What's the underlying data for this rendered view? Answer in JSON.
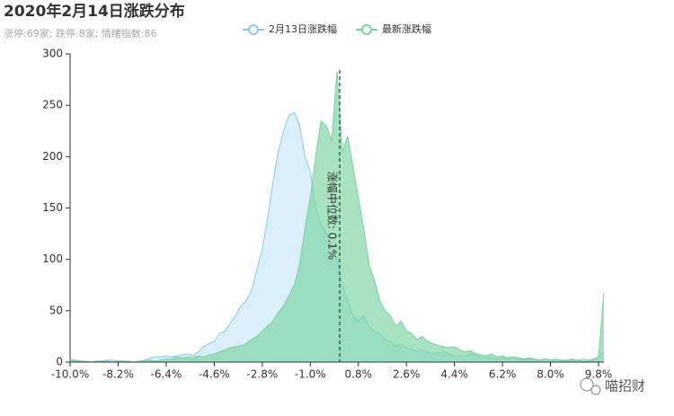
{
  "chart_data": {
    "type": "area",
    "title": "2020年2月14日涨跌分布",
    "subtitle": "涨停:69家; 跌停:8家; 情绪指数:86",
    "watermark": "喵招财",
    "x": [
      -10.0,
      -9.8,
      -9.6,
      -9.4,
      -9.2,
      -9.0,
      -8.8,
      -8.6,
      -8.4,
      -8.2,
      -8.0,
      -7.8,
      -7.6,
      -7.4,
      -7.2,
      -7.0,
      -6.8,
      -6.6,
      -6.4,
      -6.2,
      -6.0,
      -5.8,
      -5.6,
      -5.4,
      -5.2,
      -5.0,
      -4.8,
      -4.6,
      -4.4,
      -4.2,
      -4.0,
      -3.8,
      -3.6,
      -3.4,
      -3.2,
      -3.0,
      -2.8,
      -2.6,
      -2.4,
      -2.2,
      -2.0,
      -1.8,
      -1.6,
      -1.4,
      -1.2,
      -1.0,
      -0.8,
      -0.6,
      -0.4,
      -0.2,
      0.0,
      0.2,
      0.4,
      0.6,
      0.8,
      1.0,
      1.2,
      1.4,
      1.6,
      1.8,
      2.0,
      2.2,
      2.4,
      2.6,
      2.8,
      3.0,
      3.2,
      3.4,
      3.6,
      3.8,
      4.0,
      4.2,
      4.4,
      4.6,
      4.8,
      5.0,
      5.2,
      5.4,
      5.6,
      5.8,
      6.0,
      6.2,
      6.4,
      6.6,
      6.8,
      7.0,
      7.2,
      7.4,
      7.6,
      7.8,
      8.0,
      8.2,
      8.4,
      8.6,
      8.8,
      9.0,
      9.2,
      9.4,
      9.6,
      9.8,
      10.0
    ],
    "series": [
      {
        "name": "2月13日涨跌幅",
        "color": "#86cbec",
        "values": [
          3,
          2,
          1,
          1,
          0,
          1,
          1,
          2,
          2,
          1,
          1,
          1,
          0,
          1,
          2,
          4,
          5,
          5,
          6,
          5,
          6,
          7,
          8,
          6,
          10,
          15,
          18,
          20,
          28,
          30,
          38,
          45,
          55,
          60,
          70,
          90,
          110,
          140,
          175,
          205,
          225,
          240,
          243,
          230,
          200,
          185,
          150,
          135,
          125,
          115,
          100,
          75,
          60,
          45,
          40,
          45,
          35,
          30,
          28,
          22,
          20,
          15,
          18,
          14,
          12,
          10,
          12,
          10,
          8,
          9,
          10,
          8,
          6,
          6,
          5,
          8,
          6,
          4,
          5,
          4,
          3,
          4,
          3,
          5,
          3,
          2,
          3,
          2,
          2,
          3,
          2,
          3,
          2,
          2,
          3,
          2,
          3,
          2,
          3,
          5,
          10
        ]
      },
      {
        "name": "最新涨跌幅",
        "color": "#78d3a0",
        "values": [
          2,
          1,
          1,
          0,
          0,
          1,
          1,
          1,
          0,
          1,
          1,
          0,
          0,
          1,
          1,
          2,
          1,
          2,
          3,
          3,
          5,
          4,
          5,
          4,
          6,
          5,
          7,
          8,
          10,
          12,
          14,
          15,
          16,
          18,
          22,
          25,
          30,
          35,
          40,
          48,
          55,
          65,
          75,
          95,
          130,
          160,
          200,
          235,
          230,
          215,
          283,
          205,
          220,
          190,
          160,
          130,
          95,
          80,
          60,
          50,
          45,
          35,
          40,
          30,
          28,
          22,
          25,
          20,
          18,
          16,
          15,
          14,
          15,
          12,
          10,
          11,
          8,
          7,
          6,
          8,
          5,
          6,
          4,
          5,
          4,
          3,
          4,
          3,
          2,
          3,
          2,
          2,
          2,
          1,
          2,
          2,
          1,
          1,
          2,
          5,
          68
        ]
      }
    ],
    "median": {
      "value": 0.1,
      "label": "涨幅中位数: 0.1%"
    },
    "xlim": [
      -10,
      10
    ],
    "xticks": [
      {
        "value": -10.0,
        "label": "-10.0%"
      },
      {
        "value": -8.2,
        "label": "-8.2%"
      },
      {
        "value": -6.4,
        "label": "-6.4%"
      },
      {
        "value": -4.6,
        "label": "-4.6%"
      },
      {
        "value": -2.8,
        "label": "-2.8%"
      },
      {
        "value": -1.0,
        "label": "-1.0%"
      },
      {
        "value": 0.8,
        "label": "0.8%"
      },
      {
        "value": 2.6,
        "label": "2.6%"
      },
      {
        "value": 4.4,
        "label": "4.4%"
      },
      {
        "value": 6.2,
        "label": "6.2%"
      },
      {
        "value": 8.0,
        "label": "8.0%"
      },
      {
        "value": 9.8,
        "label": "9.8%"
      }
    ],
    "ylim": [
      0,
      300
    ],
    "yticks": [
      0,
      50,
      100,
      150,
      200,
      250,
      300
    ],
    "grid": false
  }
}
